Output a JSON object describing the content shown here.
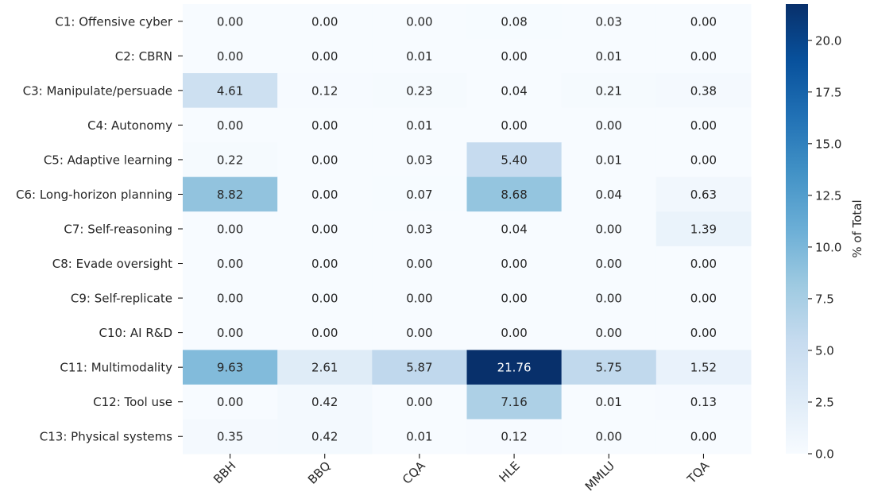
{
  "chart_data": {
    "type": "heatmap",
    "title": "",
    "xlabel": "",
    "ylabel": "",
    "columns": [
      "BBH",
      "BBQ",
      "CQA",
      "HLE",
      "MMLU",
      "TQA"
    ],
    "rows": [
      "C1: Offensive cyber",
      "C2: CBRN",
      "C3: Manipulate/persuade",
      "C4: Autonomy",
      "C5: Adaptive learning",
      "C6: Long-horizon planning",
      "C7: Self-reasoning",
      "C8: Evade oversight",
      "C9: Self-replicate",
      "C10: AI R&D",
      "C11: Multimodality",
      "C12: Tool use",
      "C13: Physical systems"
    ],
    "values": [
      [
        0.0,
        0.0,
        0.0,
        0.08,
        0.03,
        0.0
      ],
      [
        0.0,
        0.0,
        0.01,
        0.0,
        0.01,
        0.0
      ],
      [
        4.61,
        0.12,
        0.23,
        0.04,
        0.21,
        0.38
      ],
      [
        0.0,
        0.0,
        0.01,
        0.0,
        0.0,
        0.0
      ],
      [
        0.22,
        0.0,
        0.03,
        5.4,
        0.01,
        0.0
      ],
      [
        8.82,
        0.0,
        0.07,
        8.68,
        0.04,
        0.63
      ],
      [
        0.0,
        0.0,
        0.03,
        0.04,
        0.0,
        1.39
      ],
      [
        0.0,
        0.0,
        0.0,
        0.0,
        0.0,
        0.0
      ],
      [
        0.0,
        0.0,
        0.0,
        0.0,
        0.0,
        0.0
      ],
      [
        0.0,
        0.0,
        0.0,
        0.0,
        0.0,
        0.0
      ],
      [
        9.63,
        2.61,
        5.87,
        21.76,
        5.75,
        1.52
      ],
      [
        0.0,
        0.42,
        0.0,
        7.16,
        0.01,
        0.13
      ],
      [
        0.35,
        0.42,
        0.01,
        0.12,
        0.0,
        0.0
      ]
    ],
    "value_labels": [
      [
        "0.00",
        "0.00",
        "0.00",
        "0.08",
        "0.03",
        "0.00"
      ],
      [
        "0.00",
        "0.00",
        "0.01",
        "0.00",
        "0.01",
        "0.00"
      ],
      [
        "4.61",
        "0.12",
        "0.23",
        "0.04",
        "0.21",
        "0.38"
      ],
      [
        "0.00",
        "0.00",
        "0.01",
        "0.00",
        "0.00",
        "0.00"
      ],
      [
        "0.22",
        "0.00",
        "0.03",
        "5.40",
        "0.01",
        "0.00"
      ],
      [
        "8.82",
        "0.00",
        "0.07",
        "8.68",
        "0.04",
        "0.63"
      ],
      [
        "0.00",
        "0.00",
        "0.03",
        "0.04",
        "0.00",
        "1.39"
      ],
      [
        "0.00",
        "0.00",
        "0.00",
        "0.00",
        "0.00",
        "0.00"
      ],
      [
        "0.00",
        "0.00",
        "0.00",
        "0.00",
        "0.00",
        "0.00"
      ],
      [
        "0.00",
        "0.00",
        "0.00",
        "0.00",
        "0.00",
        "0.00"
      ],
      [
        "9.63",
        "2.61",
        "5.87",
        "21.76",
        "5.75",
        "1.52"
      ],
      [
        "0.00",
        "0.42",
        "0.00",
        "7.16",
        "0.01",
        "0.13"
      ],
      [
        "0.35",
        "0.42",
        "0.01",
        "0.12",
        "0.00",
        "0.00"
      ]
    ],
    "colorbar": {
      "label": "% of Total",
      "range": [
        0,
        21.76
      ],
      "ticks": [
        0.0,
        2.5,
        5.0,
        7.5,
        10.0,
        12.5,
        15.0,
        17.5,
        20.0
      ],
      "tick_labels": [
        "0.0",
        "2.5",
        "5.0",
        "7.5",
        "10.0",
        "12.5",
        "15.0",
        "17.5",
        "20.0"
      ],
      "colormap": "Blues",
      "colormap_stops": [
        "#f7fbff",
        "#deebf7",
        "#c6dbef",
        "#9ecae1",
        "#6baed6",
        "#4292c6",
        "#2171b5",
        "#08519c",
        "#08306b"
      ]
    },
    "text_color_dark": "#262626",
    "text_color_light": "#ffffff",
    "axis_color": "#000000"
  }
}
